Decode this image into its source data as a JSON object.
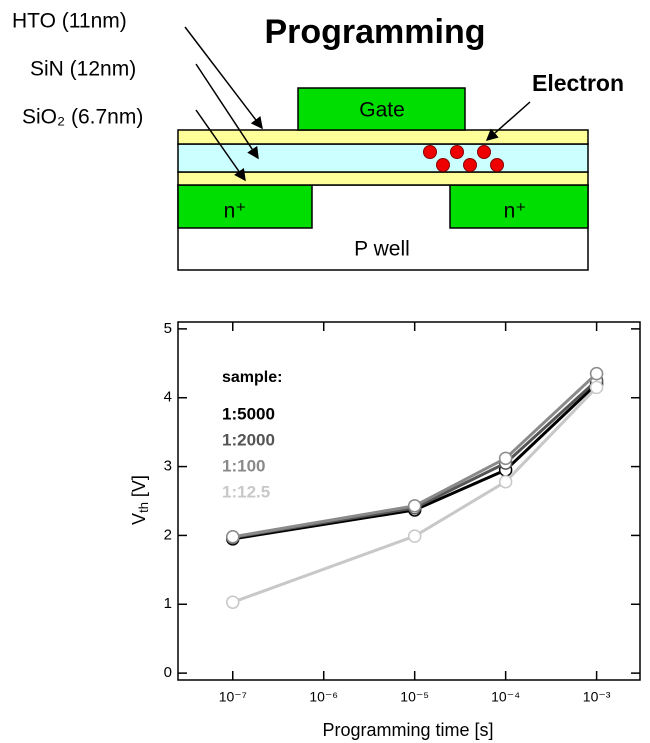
{
  "diagram": {
    "title": "Programming",
    "layers": [
      "HTO (11nm)",
      "SiN (12nm)",
      "SiO₂ (6.7nm)"
    ],
    "gate": "Gate",
    "electron": "Electron",
    "source": "n⁺",
    "drain": "n⁺",
    "well": "P well"
  },
  "chart_data": {
    "type": "line",
    "xlabel": "Programming time [s]",
    "ylabel": {
      "text": "V",
      "subscript": "th",
      "unit": "[V]"
    },
    "legend_title": "sample:",
    "x": [
      1e-07,
      1e-05,
      0.0001,
      0.001
    ],
    "xscale": "log",
    "xlim": [
      2.5e-08,
      0.003
    ],
    "xticks": [
      {
        "value": 1e-07,
        "label": "10⁻⁷"
      },
      {
        "value": 1e-06,
        "label": "10⁻⁶"
      },
      {
        "value": 1e-05,
        "label": "10⁻⁵"
      },
      {
        "value": 0.0001,
        "label": "10⁻⁴"
      },
      {
        "value": 0.001,
        "label": "10⁻³"
      }
    ],
    "ylim": [
      -0.1,
      5.1
    ],
    "yticks": [
      0,
      1,
      2,
      3,
      4,
      5
    ],
    "series": [
      {
        "name": "1:5000",
        "color": "#000000",
        "values": [
          1.95,
          2.37,
          2.95,
          4.2
        ]
      },
      {
        "name": "1:2000",
        "color": "#555555",
        "values": [
          1.97,
          2.4,
          3.05,
          4.25
        ]
      },
      {
        "name": "1:100",
        "color": "#8a8a8a",
        "values": [
          1.98,
          2.43,
          3.12,
          4.35
        ]
      },
      {
        "name": "1:12.5",
        "color": "#c8c8c8",
        "values": [
          1.03,
          1.99,
          2.78,
          4.15
        ]
      }
    ]
  }
}
